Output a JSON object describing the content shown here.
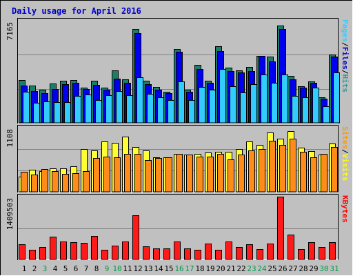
{
  "chart_data": {
    "type": "bar",
    "title": "Daily usage for April 2016",
    "categories": [
      "1",
      "2",
      "3",
      "4",
      "5",
      "6",
      "7",
      "8",
      "9",
      "10",
      "11",
      "12",
      "13",
      "14",
      "15",
      "16",
      "17",
      "18",
      "19",
      "20",
      "21",
      "22",
      "23",
      "24",
      "25",
      "26",
      "27",
      "28",
      "29",
      "30",
      "31"
    ],
    "weekend_days": [
      "3",
      "9",
      "10",
      "16",
      "17",
      "23",
      "24",
      "30",
      "31"
    ],
    "panels": [
      {
        "id": "hits",
        "max_label": "7165",
        "ymax": 7165,
        "grid_fractions": [
          0.33,
          0.67
        ],
        "legend": [
          {
            "text": "Hits",
            "color": "#339999"
          },
          {
            "text": "/",
            "color": "#000000"
          },
          {
            "text": "Files",
            "color": "#0000cc"
          },
          {
            "text": "/",
            "color": "#000000"
          },
          {
            "text": "Pages",
            "color": "#33ccff"
          }
        ],
        "series": [
          {
            "name": "Hits",
            "color": "#1a7f66",
            "values": [
              3000,
              2600,
              2300,
              2750,
              2950,
              3000,
              2450,
              2950,
              2450,
              3700,
              3050,
              6600,
              2950,
              2500,
              2200,
              5200,
              2300,
              4050,
              2950,
              5350,
              3850,
              3700,
              3900,
              4700,
              4650,
              6850,
              3300,
              2550,
              2900,
              1800,
              4800
            ]
          },
          {
            "name": "Files",
            "color": "#0000ee",
            "values": [
              2600,
              2250,
              2100,
              2350,
              2700,
              2800,
              2350,
              2650,
              2300,
              3100,
              2800,
              6300,
              2700,
              2300,
              2100,
              5000,
              2200,
              3800,
              2800,
              5050,
              3650,
              3550,
              3650,
              4700,
              4300,
              6600,
              3050,
              2450,
              2800,
              1700,
              4650
            ]
          },
          {
            "name": "Pages",
            "color": "#33ccff",
            "values": [
              2200,
              1400,
              1500,
              1450,
              1450,
              1900,
              2000,
              1600,
              1950,
              2250,
              1950,
              3200,
              2050,
              1800,
              1600,
              2900,
              1600,
              2500,
              2300,
              3800,
              2550,
              2150,
              2700,
              3400,
              2800,
              3400,
              1900,
              1800,
              2450,
              1150,
              3550
            ]
          }
        ]
      },
      {
        "id": "visits",
        "max_label": "1108",
        "ymax": 1108,
        "grid_fractions": [
          0.33,
          0.67
        ],
        "legend": [
          {
            "text": "Visits",
            "color": "#ffff00"
          },
          {
            "text": "/",
            "color": "#000000"
          },
          {
            "text": "Sites",
            "color": "#ff9900"
          }
        ],
        "series": [
          {
            "name": "Visits",
            "color": "#ffff33",
            "values": [
              260,
              380,
              360,
              410,
              400,
              440,
              740,
              720,
              870,
              850,
              950,
              770,
              720,
              600,
              600,
              660,
              640,
              650,
              680,
              690,
              690,
              740,
              870,
              810,
              1030,
              920,
              1050,
              760,
              700,
              640,
              830
            ]
          },
          {
            "name": "Sites",
            "color": "#ff8c1a",
            "values": [
              350,
              300,
              390,
              360,
              310,
              320,
              360,
              580,
              610,
              600,
              660,
              650,
              550,
              580,
              590,
              660,
              640,
              610,
              610,
              660,
              560,
              640,
              710,
              740,
              880,
              810,
              920,
              690,
              590,
              650,
              770
            ]
          }
        ]
      },
      {
        "id": "kbytes",
        "max_label": "1409503",
        "ymax": 1409503,
        "grid_fractions": [
          0.5
        ],
        "legend": [
          {
            "text": "KBytes",
            "color": "#ff0000"
          }
        ],
        "series": [
          {
            "name": "KBytes",
            "color": "#ff1a1a",
            "values": [
              340000,
              220000,
              280000,
              510000,
              400000,
              380000,
              370000,
              520000,
              210000,
              310000,
              410000,
              990000,
              300000,
              250000,
              250000,
              400000,
              250000,
              220000,
              350000,
              220000,
              410000,
              280000,
              340000,
              240000,
              360000,
              1409503,
              560000,
              240000,
              380000,
              280000,
              390000
            ]
          }
        ]
      }
    ]
  }
}
